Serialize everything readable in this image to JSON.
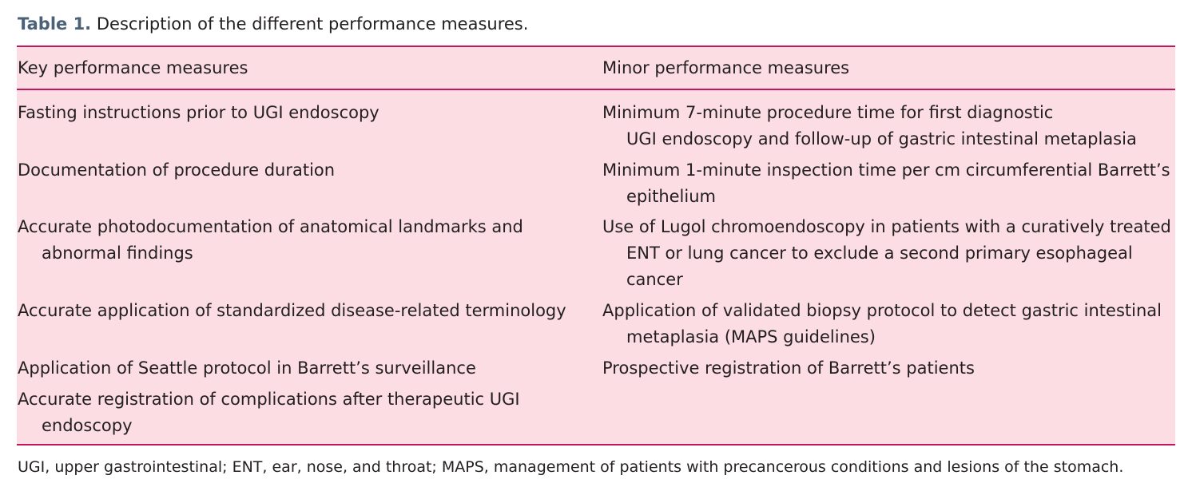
{
  "caption": {
    "label": "Table 1.",
    "text": "Description of the different performance measures."
  },
  "table": {
    "headers": [
      "Key performance measures",
      "Minor performance measures"
    ],
    "key_measures": [
      [
        "Fasting instructions prior to UGI endoscopy"
      ],
      [
        "Documentation of procedure duration"
      ],
      [
        "Accurate photodocumentation of anatomical landmarks and",
        "abnormal findings"
      ],
      [
        "Accurate application of standardized disease-related terminology"
      ],
      [
        "Application of Seattle protocol in Barrett’s surveillance"
      ],
      [
        "Accurate registration of complications after therapeutic UGI",
        "endoscopy"
      ]
    ],
    "minor_measures": [
      [
        "Minimum 7-minute procedure time for first diagnostic",
        "UGI endoscopy and follow-up of gastric intestinal metaplasia"
      ],
      [
        "Minimum 1-minute inspection time per cm circumferential Barrett’s",
        "epithelium"
      ],
      [
        "Use of Lugol chromoendoscopy in patients with a curatively treated",
        "ENT or lung cancer to exclude a second primary esophageal",
        "cancer"
      ],
      [
        "Application of validated biopsy protocol to detect gastric intestinal",
        "metaplasia (MAPS guidelines)"
      ],
      [
        "Prospective registration of Barrett’s patients"
      ]
    ]
  },
  "footnote": "UGI, upper gastrointestinal; ENT, ear, nose, and throat; MAPS, management of patients with precancerous conditions and lesions of the stomach.",
  "colors": {
    "table_background": "#fbdde3",
    "rule": "#c2185b",
    "caption_label": "#4a6178",
    "text": "#231f20"
  }
}
